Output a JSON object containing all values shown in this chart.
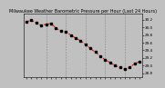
{
  "title": "Milwaukee Weather Barometric Pressure per Hour (Last 24 Hours)",
  "background_color": "#c0c0c0",
  "plot_background": "#c0c0c0",
  "line_color": "#ff0000",
  "marker_color": "#000000",
  "grid_color": "#888888",
  "x_values": [
    0,
    1,
    2,
    3,
    4,
    5,
    6,
    7,
    8,
    9,
    10,
    11,
    12,
    13,
    14,
    15,
    16,
    17,
    18,
    19,
    20,
    21,
    22,
    23
  ],
  "y_values": [
    30.15,
    30.18,
    30.12,
    30.05,
    30.08,
    30.1,
    29.98,
    29.9,
    29.88,
    29.8,
    29.72,
    29.65,
    29.55,
    29.45,
    29.35,
    29.25,
    29.15,
    29.08,
    29.0,
    28.95,
    28.9,
    28.95,
    29.05,
    29.1
  ],
  "ylim": [
    28.7,
    30.35
  ],
  "xlim": [
    -0.5,
    23.5
  ],
  "ytick_values": [
    28.8,
    29.0,
    29.2,
    29.4,
    29.6,
    29.8,
    30.0,
    30.2
  ],
  "ytick_labels": [
    "28.8",
    "29.0",
    "29.2",
    "29.4",
    "29.6",
    "29.8",
    "30.0",
    "30.2"
  ],
  "xtick_values": [
    0,
    1,
    2,
    3,
    4,
    5,
    6,
    7,
    8,
    9,
    10,
    11,
    12,
    13,
    14,
    15,
    16,
    17,
    18,
    19,
    20,
    21,
    22,
    23
  ],
  "vgrid_positions": [
    4,
    8,
    12,
    16,
    20
  ],
  "title_fontsize": 3.5,
  "tick_fontsize": 3.0,
  "line_width": 0.7,
  "marker_size": 1.8
}
